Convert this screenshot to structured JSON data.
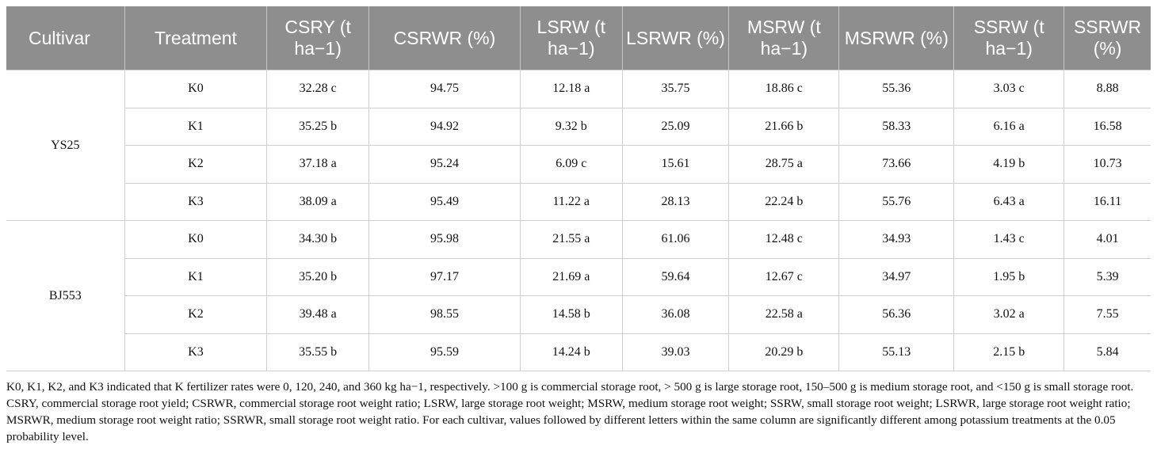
{
  "table": {
    "headers": [
      "Cultivar",
      "Treatment",
      "CSRY (t ha−1)",
      "CSRWR (%)",
      "LSRW (t ha−1)",
      "LSRWR (%)",
      "MSRW (t ha−1)",
      "MSRWR (%)",
      "SSRW (t ha−1)",
      "SSRWR (%)"
    ],
    "groups": [
      {
        "cultivar": "YS25",
        "rows": [
          [
            "K0",
            "32.28 c",
            "94.75",
            "12.18 a",
            "35.75",
            "18.86 c",
            "55.36",
            "3.03 c",
            "8.88"
          ],
          [
            "K1",
            "35.25 b",
            "94.92",
            "9.32 b",
            "25.09",
            "21.66 b",
            "58.33",
            "6.16 a",
            "16.58"
          ],
          [
            "K2",
            "37.18 a",
            "95.24",
            "6.09 c",
            "15.61",
            "28.75 a",
            "73.66",
            "4.19 b",
            "10.73"
          ],
          [
            "K3",
            "38.09 a",
            "95.49",
            "11.22 a",
            "28.13",
            "22.24 b",
            "55.76",
            "6.43 a",
            "16.11"
          ]
        ]
      },
      {
        "cultivar": "BJ553",
        "rows": [
          [
            "K0",
            "34.30 b",
            "95.98",
            "21.55 a",
            "61.06",
            "12.48 c",
            "34.93",
            "1.43 c",
            "4.01"
          ],
          [
            "K1",
            "35.20 b",
            "97.17",
            "21.69 a",
            "59.64",
            "12.67 c",
            "34.97",
            "1.95 b",
            "5.39"
          ],
          [
            "K2",
            "39.48 a",
            "98.55",
            "14.58 b",
            "36.08",
            "22.58 a",
            "56.36",
            "3.02 a",
            "7.55"
          ],
          [
            "K3",
            "35.55 b",
            "95.59",
            "14.24 b",
            "39.03",
            "20.29 b",
            "55.13",
            "2.15 b",
            "5.84"
          ]
        ]
      }
    ]
  },
  "footnote": "K0, K1, K2, and K3 indicated that K fertilizer rates were 0, 120, 240, and 360 kg ha−1, respectively. >100 g is commercial storage root, > 500 g is large storage root, 150–500 g is medium storage root, and <150 g is small storage root. CSRY, commercial storage root yield; CSRWR, commercial storage root weight ratio; LSRW, large storage root weight; MSRW, medium storage root weight; SSRW, small storage root weight; LSRWR, large storage root weight ratio; MSRWR, medium storage root weight ratio; SSRWR, small storage root weight ratio. For each cultivar, values followed by different letters within the same column are significantly different among potassium treatments at the 0.05 probability level."
}
